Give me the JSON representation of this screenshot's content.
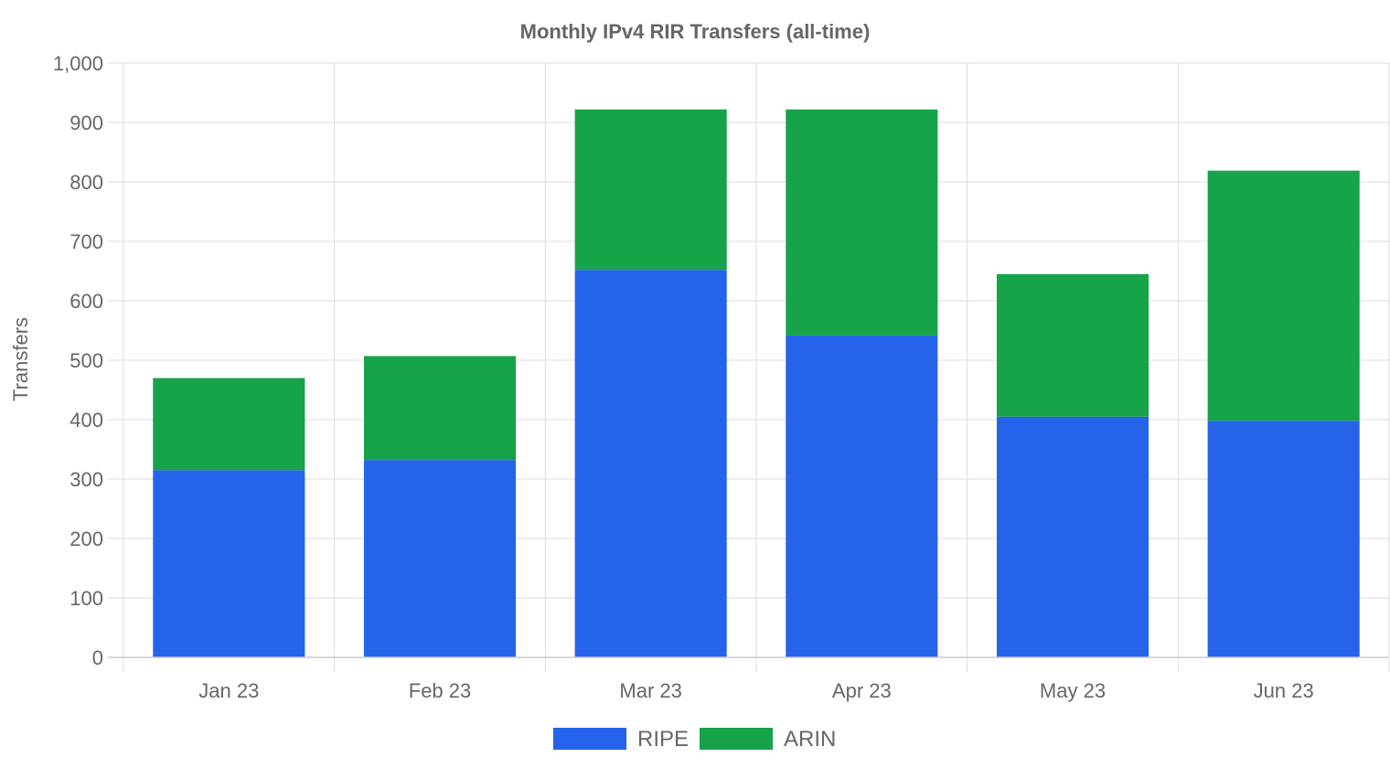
{
  "chart_data": {
    "type": "bar",
    "stacked": true,
    "title": "Monthly IPv4 RIR Transfers (all-time)",
    "xlabel": "",
    "ylabel": "Transfers",
    "categories": [
      "Jan 23",
      "Feb 23",
      "Mar 23",
      "Apr 23",
      "May 23",
      "Jun 23"
    ],
    "series": [
      {
        "name": "RIPE",
        "color": "#2563eb",
        "values": [
          315,
          332,
          652,
          542,
          405,
          398
        ]
      },
      {
        "name": "ARIN",
        "color": "#16a34a",
        "values": [
          155,
          175,
          270,
          380,
          240,
          421
        ]
      }
    ],
    "ylim": [
      0,
      1000
    ],
    "yticks": [
      "0",
      "100",
      "200",
      "300",
      "400",
      "500",
      "600",
      "700",
      "800",
      "900",
      "1,000"
    ],
    "grid": true,
    "legend": "bottom"
  }
}
